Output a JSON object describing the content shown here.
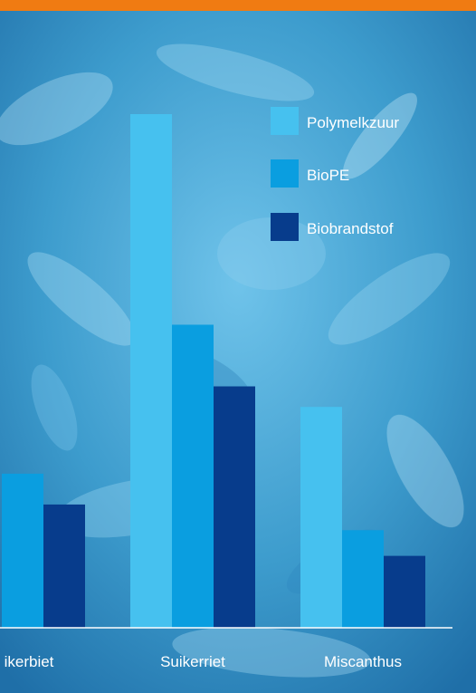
{
  "colors": {
    "top_bar": "#f07b12",
    "background": "#3f9fd0"
  },
  "chart_data": {
    "type": "bar",
    "categories": [
      "Suikerbiet",
      "Suikerriet",
      "Miscanthus"
    ],
    "visible_category_labels": [
      "ikerbiet",
      "Suikerriet",
      "Miscanthus"
    ],
    "series": [
      {
        "name": "Polymelkzuur",
        "color": "#46c1ef",
        "values": [
          null,
          100,
          43
        ]
      },
      {
        "name": "BioPE",
        "color": "#0a9ee0",
        "values": [
          30,
          59,
          19
        ]
      },
      {
        "name": "Biobrandstof",
        "color": "#073c8c",
        "values": [
          24,
          47,
          14
        ]
      }
    ],
    "ylim": [
      0,
      100
    ],
    "legend_position": "top-right",
    "grid": false
  }
}
